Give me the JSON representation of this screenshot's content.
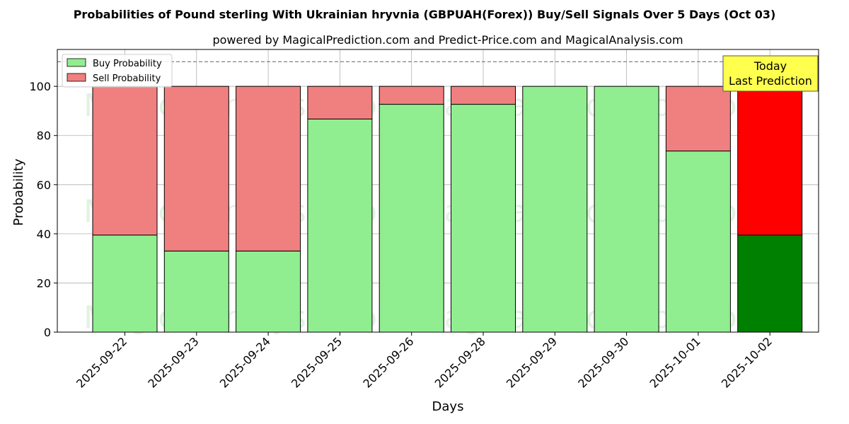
{
  "colors": {
    "buy": "#90ee90",
    "sell": "#f08080",
    "buy_today": "#008000",
    "sell_today": "#ff0000",
    "today_box": "#ffff4d"
  },
  "annotation": {
    "line1": "Today",
    "line2": "Last Prediction"
  },
  "watermarks": [
    "MagicalAnalysis.com",
    "MagicalPrediction.com"
  ],
  "chart_data": {
    "type": "bar",
    "stacked": true,
    "title": "Probabilities of Pound sterling With Ukrainian hryvnia (GBPUAH(Forex)) Buy/Sell Signals Over 5 Days (Oct 03)",
    "subtitle": "powered by MagicalPrediction.com and Predict-Price.com and MagicalAnalysis.com",
    "xlabel": "Days",
    "ylabel": "Probability",
    "ylim": [
      0,
      115
    ],
    "yticks": [
      0,
      20,
      40,
      60,
      80,
      100
    ],
    "reference_line": 110,
    "grid": true,
    "legend_position": "top-left",
    "categories": [
      "2025-09-22",
      "2025-09-23",
      "2025-09-24",
      "2025-09-25",
      "2025-09-26",
      "2025-09-28",
      "2025-09-29",
      "2025-09-30",
      "2025-10-01",
      "2025-10-02"
    ],
    "series": [
      {
        "name": "Buy Probability",
        "values": [
          39.5,
          33,
          33,
          86.7,
          92.7,
          92.7,
          100,
          100,
          73.7,
          39.5
        ]
      },
      {
        "name": "Sell Probability",
        "values": [
          60.5,
          67,
          67,
          13.3,
          7.3,
          7.3,
          0,
          0,
          26.3,
          60.5
        ]
      }
    ],
    "highlight_index": 9
  }
}
